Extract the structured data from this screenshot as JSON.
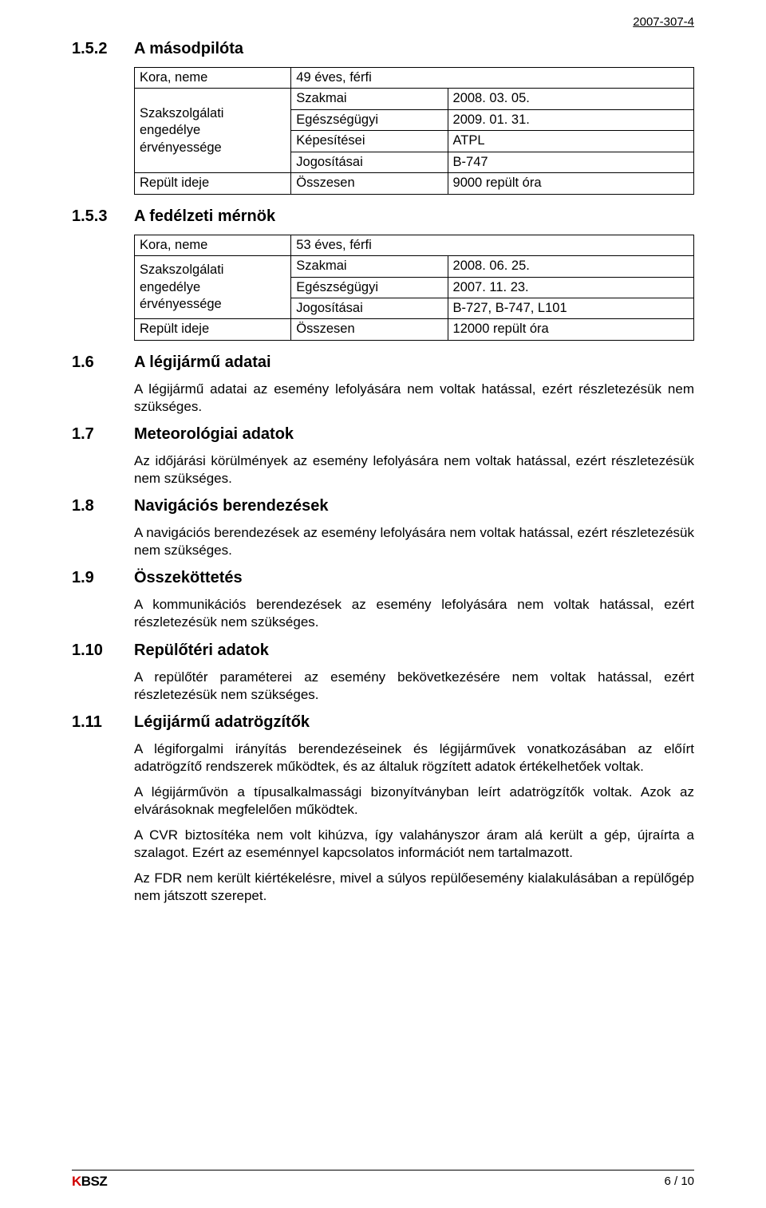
{
  "doc_id": "2007-307-4",
  "s152": {
    "num": "1.5.2",
    "title": "A másodpilóta",
    "table": {
      "row1_label": "Kora, neme",
      "row1_val": "49 éves, férfi",
      "row2_label": "Szakszolgálati engedélye érvényessége",
      "row2_a_sub": "Szakmai",
      "row2_a_val": "2008. 03. 05.",
      "row2_b_sub": "Egészségügyi",
      "row2_b_val": "2009. 01. 31.",
      "row2_c_sub": "Képesítései",
      "row2_c_val": "ATPL",
      "row2_d_sub": "Jogosításai",
      "row2_d_val": "B-747",
      "row3_label": "Repült ideje",
      "row3_sub": "Összesen",
      "row3_val": "9000 repült óra"
    }
  },
  "s153": {
    "num": "1.5.3",
    "title": "A fedélzeti mérnök",
    "table": {
      "row1_label": "Kora, neme",
      "row1_val": "53 éves, férfi",
      "row2_label": "Szakszolgálati engedélye érvényessége",
      "row2_a_sub": "Szakmai",
      "row2_a_val": "2008. 06. 25.",
      "row2_b_sub": "Egészségügyi",
      "row2_b_val": "2007. 11. 23.",
      "row2_c_sub": "Jogosításai",
      "row2_c_val": "B-727, B-747, L101",
      "row3_label": "Repült ideje",
      "row3_sub": "Összesen",
      "row3_val": "12000 repült óra"
    }
  },
  "s16": {
    "num": "1.6",
    "title": "A légijármű adatai",
    "body": "A légijármű adatai az esemény lefolyására nem voltak hatással, ezért részletezésük nem szükséges."
  },
  "s17": {
    "num": "1.7",
    "title": "Meteorológiai adatok",
    "body": "Az időjárási körülmények az esemény lefolyására nem voltak hatással, ezért részletezésük nem szükséges."
  },
  "s18": {
    "num": "1.8",
    "title": "Navigációs berendezések",
    "body": "A navigációs berendezések az esemény lefolyására nem voltak hatással, ezért részletezésük nem szükséges."
  },
  "s19": {
    "num": "1.9",
    "title": "Összeköttetés",
    "body": "A kommunikációs berendezések az esemény lefolyására nem voltak hatással, ezért részletezésük nem szükséges."
  },
  "s110": {
    "num": "1.10",
    "title": "Repülőtéri adatok",
    "body": "A repülőtér paraméterei az esemény bekövetkezésére nem voltak hatással, ezért részletezésük nem szükséges."
  },
  "s111": {
    "num": "1.11",
    "title": "Légijármű adatrögzítők",
    "p1": "A légiforgalmi irányítás berendezéseinek és légijárművek vonatkozásában az előírt adatrögzítő rendszerek működtek, és az általuk rögzített adatok értékelhetőek voltak.",
    "p2": "A légijárművön a típusalkalmassági bizonyítványban leírt adatrögzítők voltak. Azok az elvárásoknak megfelelően működtek.",
    "p3": "A CVR biztosítéka nem volt kihúzva, így valahányszor áram alá került a gép, újraírta a szalagot. Ezért az eseménnyel kapcsolatos információt nem tartalmazott.",
    "p4": "Az FDR nem került kiértékelésre, mivel a súlyos repülőesemény kialakulásában a repülőgép nem játszott szerepet."
  },
  "footer": {
    "logo_k": "K",
    "logo_rest": "BSZ",
    "page": "6 / 10"
  }
}
